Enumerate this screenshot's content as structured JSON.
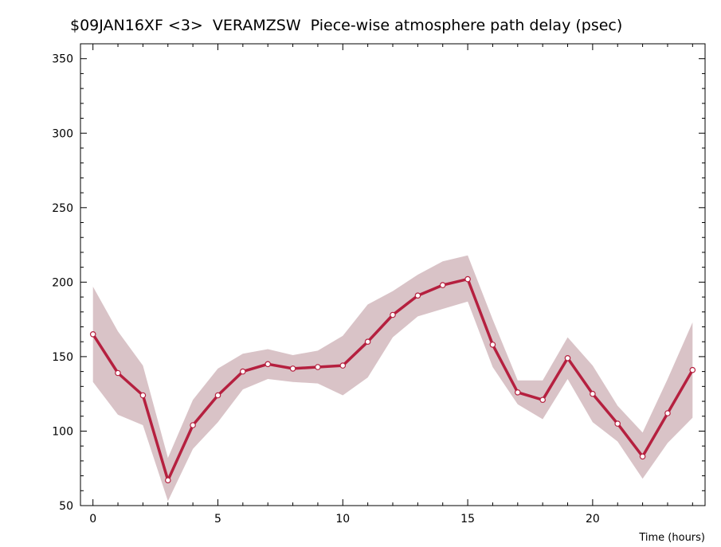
{
  "chart_data": {
    "type": "line",
    "title": "$09JAN16XF <3>  VERAMZSW  Piece-wise atmosphere path delay (psec)",
    "xlabel": "Time (hours)",
    "ylabel": "",
    "xlim": [
      -0.5,
      24.5
    ],
    "ylim": [
      50,
      360
    ],
    "x_ticks": [
      0,
      5,
      10,
      15,
      20
    ],
    "y_ticks": [
      50,
      100,
      150,
      200,
      250,
      300,
      350
    ],
    "x_tick_labels": [
      "0",
      "5",
      "10",
      "15",
      "20"
    ],
    "y_tick_labels": [
      "50",
      "100",
      "150",
      "200",
      "250",
      "300",
      "350"
    ],
    "grid": false,
    "series": [
      {
        "x": [
          0,
          1,
          2,
          3,
          4,
          5,
          6,
          7,
          8,
          9,
          10,
          11,
          12,
          13,
          14,
          15,
          16,
          17,
          18,
          19,
          20,
          21,
          22,
          23,
          24
        ],
        "values": [
          165,
          139,
          124,
          67,
          104,
          124,
          140,
          145,
          142,
          143,
          144,
          160,
          178,
          191,
          198,
          202,
          158,
          126,
          121,
          149,
          125,
          105,
          83,
          112,
          141
        ],
        "upper": [
          197,
          167,
          144,
          82,
          121,
          142,
          152,
          155,
          151,
          154,
          164,
          185,
          194,
          205,
          214,
          218,
          175,
          134,
          134,
          163,
          144,
          117,
          99,
          135,
          173
        ],
        "lower": [
          133,
          111,
          104,
          53,
          88,
          106,
          128,
          135,
          133,
          132,
          124,
          136,
          163,
          177,
          182,
          187,
          143,
          118,
          108,
          135,
          106,
          93,
          68,
          92,
          109
        ]
      }
    ],
    "colors": {
      "line": "#b5203f",
      "marker_fill": "#ffffff",
      "band": "#d9c3c7",
      "axis": "#000000"
    }
  }
}
